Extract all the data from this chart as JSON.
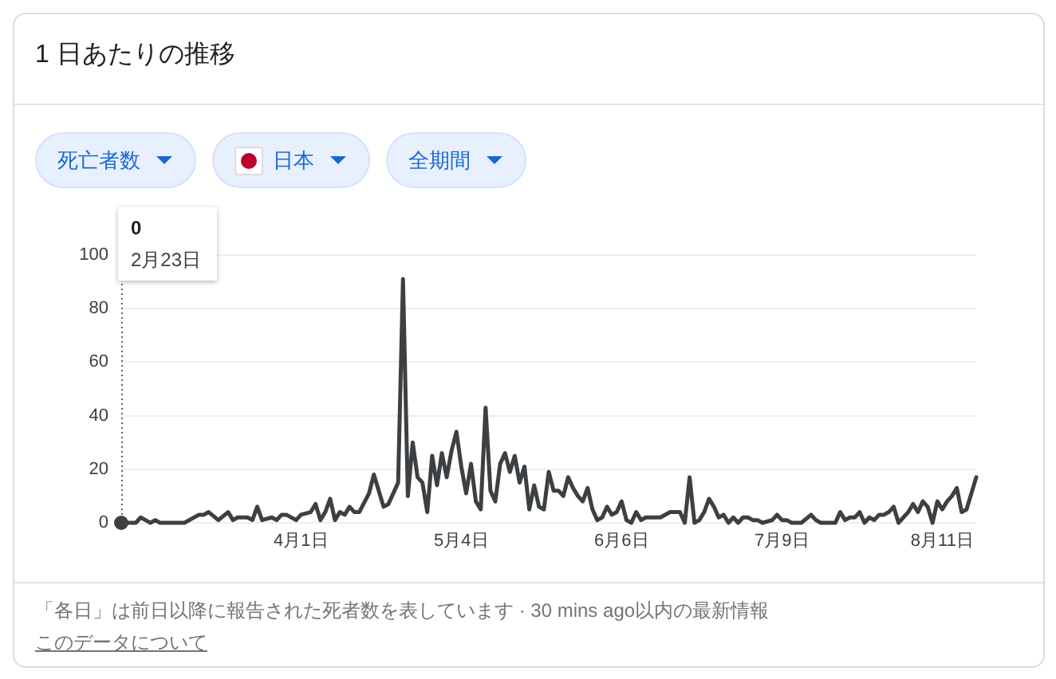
{
  "chart_data": {
    "type": "line",
    "title": "1 日あたりの推移",
    "series": [
      {
        "color": "#3c4043",
        "x": [
          "--02-23",
          "--02-26",
          "--02-27",
          "--02-28",
          "--03-01",
          "--03-02",
          "--03-03",
          "--03-08",
          "--03-11",
          "--03-12",
          "--03-13",
          "--03-15",
          "--03-17",
          "--03-18",
          "--03-19",
          "--03-21",
          "--03-22",
          "--03-23",
          "--03-24",
          "--03-26",
          "--03-27",
          "--03-28",
          "--03-29",
          "--03-31",
          "--04-01",
          "--04-03",
          "--04-04",
          "--04-05",
          "--04-06",
          "--04-07",
          "--04-08",
          "--04-09",
          "--04-10",
          "--04-11",
          "--04-12",
          "--04-13",
          "--04-15",
          "--04-16",
          "--04-18",
          "--04-19",
          "--04-21",
          "--04-22",
          "--04-23",
          "--04-24",
          "--04-25",
          "--04-26",
          "--04-27",
          "--04-28",
          "--04-29",
          "--04-30",
          "--05-01",
          "--05-02",
          "--05-03",
          "--05-04",
          "--05-05",
          "--05-06",
          "--05-07",
          "--05-08",
          "--05-09",
          "--05-10",
          "--05-11",
          "--05-12",
          "--05-13",
          "--05-14",
          "--05-15",
          "--05-16",
          "--05-17",
          "--05-18",
          "--05-19",
          "--05-20",
          "--05-21",
          "--05-22",
          "--05-23",
          "--05-24",
          "--05-25",
          "--05-26",
          "--05-27",
          "--05-28",
          "--05-29",
          "--05-30",
          "--05-31",
          "--06-01",
          "--06-02",
          "--06-03",
          "--06-04",
          "--06-05",
          "--06-06",
          "--06-07",
          "--06-08",
          "--06-09",
          "--06-10",
          "--06-11",
          "--06-12",
          "--06-14",
          "--06-16",
          "--06-18",
          "--06-19",
          "--06-20",
          "--06-21",
          "--06-22",
          "--06-23",
          "--06-24",
          "--06-25",
          "--06-26",
          "--06-27",
          "--06-28",
          "--06-29",
          "--06-30",
          "--07-01",
          "--07-02",
          "--07-03",
          "--07-04",
          "--07-05",
          "--07-07",
          "--07-08",
          "--07-09",
          "--07-10",
          "--07-11",
          "--07-13",
          "--07-15",
          "--07-16",
          "--07-17",
          "--07-20",
          "--07-21",
          "--07-22",
          "--07-23",
          "--07-24",
          "--07-25",
          "--07-26",
          "--07-27",
          "--07-28",
          "--07-29",
          "--07-30",
          "--07-31",
          "--08-01",
          "--08-02",
          "--08-03",
          "--08-04",
          "--08-05",
          "--08-06",
          "--08-07",
          "--08-08",
          "--08-09",
          "--08-10",
          "--08-11",
          "--08-12",
          "--08-13",
          "--08-14",
          "--08-15",
          "--08-16",
          "--08-18"
        ],
        "values": [
          0,
          0,
          2,
          1,
          0,
          1,
          0,
          0,
          3,
          3,
          4,
          1,
          4,
          1,
          2,
          2,
          1,
          6,
          1,
          2,
          1,
          3,
          3,
          1,
          3,
          4,
          7,
          1,
          4,
          9,
          1,
          4,
          3,
          6,
          4,
          4,
          11,
          18,
          6,
          7,
          15,
          91,
          10,
          30,
          17,
          15,
          4,
          25,
          14,
          26,
          17,
          27,
          34,
          21,
          11,
          22,
          8,
          5,
          43,
          12,
          8,
          22,
          26,
          19,
          25,
          15,
          21,
          5,
          14,
          6,
          5,
          19,
          12,
          12,
          10,
          17,
          13,
          10,
          8,
          13,
          5,
          1,
          2,
          6,
          3,
          4,
          8,
          1,
          0,
          4,
          1,
          2,
          2,
          2,
          4,
          4,
          0,
          17,
          0,
          1,
          4,
          9,
          6,
          2,
          3,
          0,
          2,
          0,
          2,
          2,
          1,
          1,
          0,
          1,
          3,
          1,
          1,
          0,
          0,
          3,
          1,
          0,
          0,
          4,
          1,
          2,
          2,
          4,
          0,
          2,
          1,
          3,
          3,
          4,
          6,
          0,
          2,
          4,
          7,
          4,
          8,
          6,
          0,
          8,
          5,
          8,
          10,
          13,
          4,
          5,
          17
        ]
      },
      {
        "type": "scatter",
        "color": "#3c4043",
        "x": [
          "--02-23"
        ],
        "values": [
          0
        ]
      }
    ],
    "xlim": [
      "--02-23",
      "--08-18"
    ],
    "xticks": [
      {
        "value": "--04-01",
        "label": "4月1日"
      },
      {
        "value": "--05-04",
        "label": "5月4日"
      },
      {
        "value": "--06-06",
        "label": "6月6日"
      },
      {
        "value": "--07-09",
        "label": "7月9日"
      },
      {
        "value": "--08-11",
        "label": "8月11日"
      }
    ],
    "ylim": [
      0,
      100
    ],
    "yticks": [
      0,
      20,
      40,
      60,
      80,
      100
    ],
    "grid": "y",
    "ref_lines": [
      {
        "axis": "x",
        "value": "--02-23",
        "line_style": "dotted",
        "color": "#5f6368"
      }
    ],
    "annotations": [
      "死亡者数",
      "日本",
      "全期間",
      "0",
      "2月23日",
      "「各日」は前日以降に報告された死者数を表しています · 30 mins ago以内の最新情報",
      "このデータについて"
    ]
  }
}
